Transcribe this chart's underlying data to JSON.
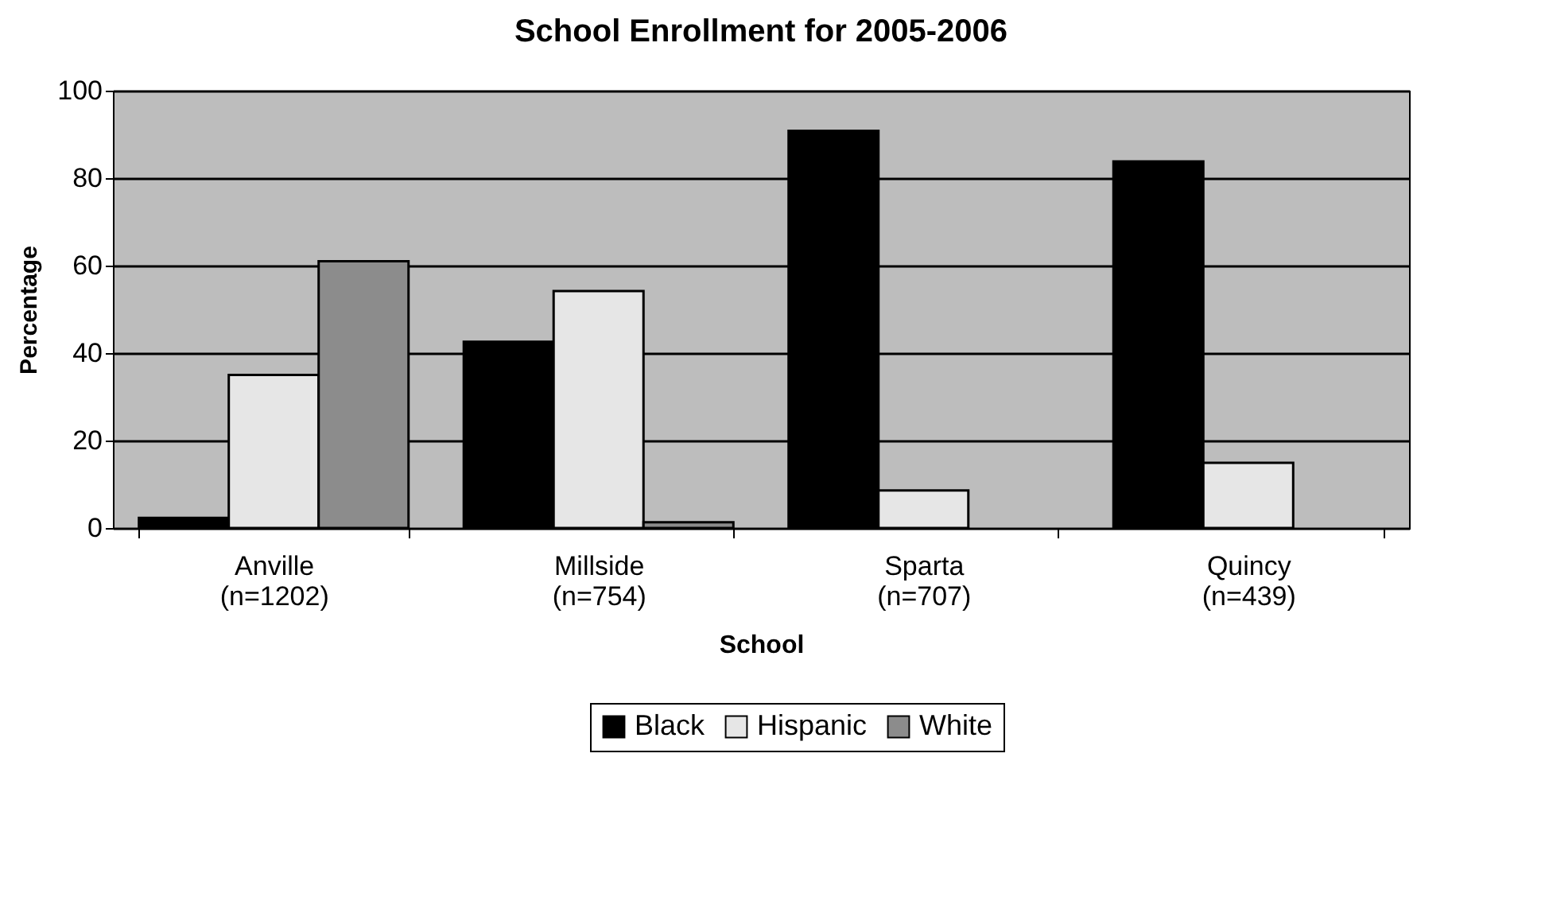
{
  "chart_data": {
    "type": "bar",
    "title": "School Enrollment for 2005-2006",
    "xlabel": "School",
    "ylabel": "Percentage",
    "categories": [
      "Anville\n(n=1202)",
      "Millside\n(n=754)",
      "Sparta\n(n=707)",
      "Quincy\n(n=439)"
    ],
    "series": [
      {
        "name": "Black",
        "color": "#000000",
        "values": [
          2.3,
          42.6,
          90.8,
          83.8
        ]
      },
      {
        "name": "Hispanic",
        "color": "#e6e6e6",
        "values": [
          35,
          54.2,
          8.6,
          14.9
        ]
      },
      {
        "name": "White",
        "color": "#8c8c8c",
        "values": [
          61,
          1.3,
          null,
          null
        ]
      }
    ],
    "ylim": [
      0,
      100
    ],
    "yticks": [
      0,
      20,
      40,
      60,
      80,
      100
    ],
    "grid": "y",
    "legend": "bottom"
  }
}
